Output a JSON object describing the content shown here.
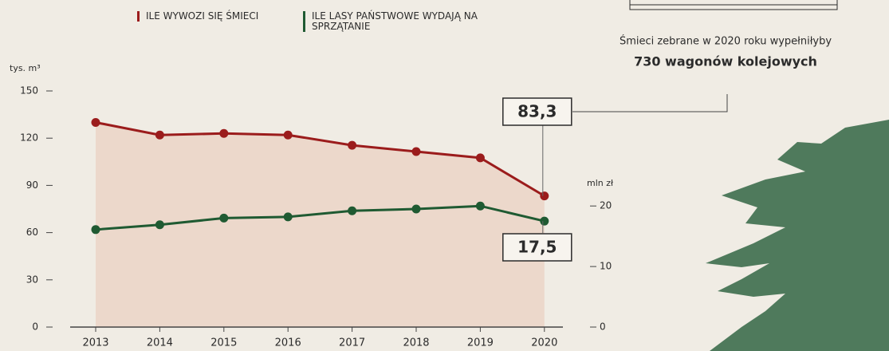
{
  "chart_data": {
    "type": "line",
    "categories": [
      "2013",
      "2014",
      "2015",
      "2016",
      "2017",
      "2018",
      "2019",
      "2020"
    ],
    "series": [
      {
        "name": "ILE WYWOZI SIĘ ŚMIECI",
        "color": "#9b1c1c",
        "values": [
          130,
          122,
          123,
          122,
          115.5,
          111.5,
          107.5,
          83.3
        ],
        "value_labels": [
          null,
          null,
          null,
          null,
          null,
          null,
          null,
          "83,3"
        ]
      },
      {
        "name": "ILE LASY PAŃSTWOWE WYDAJĄ NA SPRZĄTANIE",
        "color": "#1f5a32",
        "axis": "y2",
        "values": [
          16.1,
          16.9,
          18,
          18.2,
          19.2,
          19.5,
          20,
          17.5
        ],
        "value_labels": [
          null,
          null,
          null,
          null,
          null,
          null,
          null,
          "17,5"
        ]
      }
    ],
    "ylabel": "tys. m³",
    "y2label": "mln zł",
    "ylim": [
      0,
      150
    ],
    "yticks": [
      0,
      30,
      60,
      90,
      120,
      150
    ],
    "y2lim": [
      0,
      39
    ],
    "y2ticks": [
      0,
      10,
      20
    ],
    "area_color": "#ecd8cb",
    "annotation": [
      "Śmieci zebrane w 2020 roku wypełniłyby",
      "730 wagonów kolejowych"
    ]
  }
}
